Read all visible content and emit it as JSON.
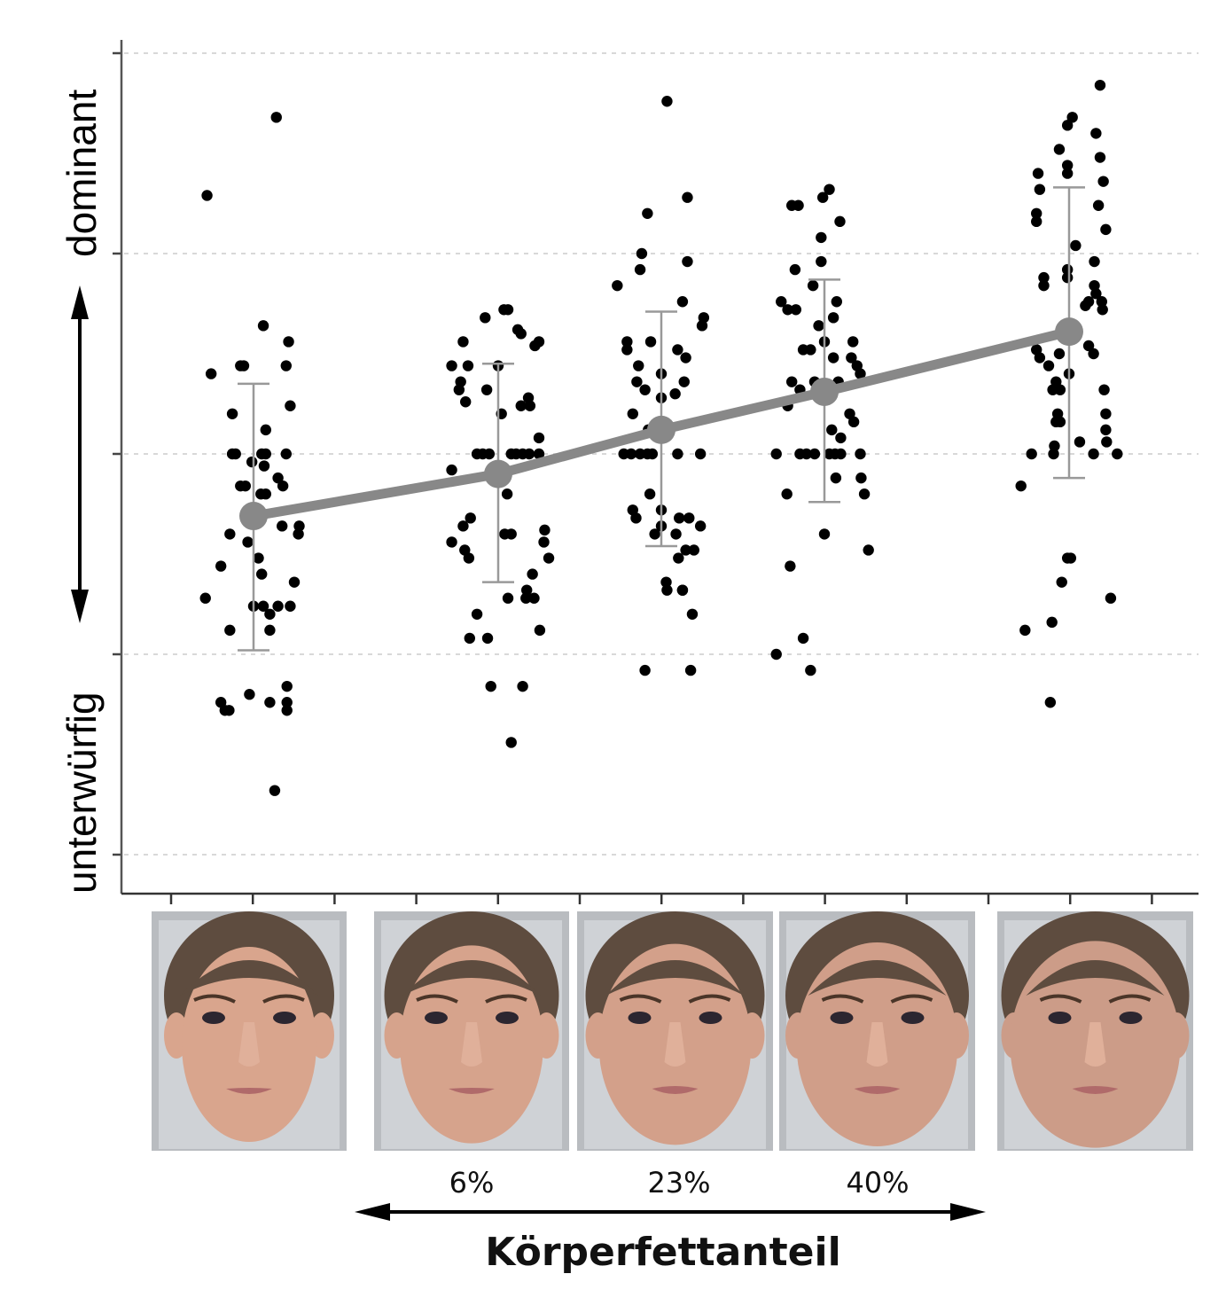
{
  "chart_data": {
    "type": "scatter",
    "title": "",
    "ylabel_top": "dominant",
    "ylabel_bottom": "unterwürfig",
    "xlabel": "Körperfettanteil",
    "x_tick_labels": [
      "6%",
      "23%",
      "40%"
    ],
    "ylim": [
      -2.2,
      2.1
    ],
    "y_gridlines": [
      2,
      1,
      0,
      -1,
      -2
    ],
    "grid": true,
    "x_minor_ticks": 13,
    "categories": [
      "face-1",
      "face-2",
      "face-3",
      "face-4",
      "face-5"
    ],
    "colors": {
      "points": "#000000",
      "mean": "#888888",
      "errorbar": "#999999",
      "grid": "#cccccc",
      "axis": "#444444"
    },
    "means": [
      -0.31,
      -0.1,
      0.12,
      0.31,
      0.61
    ],
    "error_bars": [
      {
        "low": -0.98,
        "high": 0.35
      },
      {
        "low": -0.64,
        "high": 0.45
      },
      {
        "low": -0.46,
        "high": 0.71
      },
      {
        "low": -0.24,
        "high": 0.87
      },
      {
        "low": -0.12,
        "high": 1.33
      }
    ],
    "series": [
      {
        "name": "face-1",
        "points": [
          [
            -0.57,
            1.29
          ],
          [
            0.28,
            1.68
          ],
          [
            0.12,
            0.64
          ],
          [
            -0.52,
            0.4
          ],
          [
            0.43,
            0.56
          ],
          [
            -0.16,
            0.44
          ],
          [
            -0.12,
            0.44
          ],
          [
            0.4,
            0.44
          ],
          [
            0.45,
            0.24
          ],
          [
            -0.26,
            0.2
          ],
          [
            0.15,
            0.12
          ],
          [
            -0.26,
            0.0
          ],
          [
            -0.22,
            0.0
          ],
          [
            0.1,
            0.0
          ],
          [
            0.15,
            0.0
          ],
          [
            0.4,
            0.0
          ],
          [
            -0.02,
            -0.04
          ],
          [
            0.13,
            -0.06
          ],
          [
            -0.16,
            -0.16
          ],
          [
            -0.1,
            -0.16
          ],
          [
            0.3,
            -0.12
          ],
          [
            0.36,
            -0.16
          ],
          [
            0.15,
            -0.2
          ],
          [
            0.09,
            -0.2
          ],
          [
            0.35,
            -0.36
          ],
          [
            0.56,
            -0.36
          ],
          [
            0.55,
            -0.4
          ],
          [
            -0.29,
            -0.4
          ],
          [
            -0.07,
            -0.44
          ],
          [
            0.06,
            -0.52
          ],
          [
            -0.4,
            -0.56
          ],
          [
            0.1,
            -0.6
          ],
          [
            0.5,
            -0.64
          ],
          [
            -0.59,
            -0.72
          ],
          [
            0.0,
            -0.76
          ],
          [
            0.12,
            -0.76
          ],
          [
            0.3,
            -0.76
          ],
          [
            0.45,
            -0.76
          ],
          [
            0.2,
            -0.8
          ],
          [
            0.2,
            -0.88
          ],
          [
            -0.29,
            -0.88
          ],
          [
            -0.4,
            -1.24
          ],
          [
            -0.35,
            -1.28
          ],
          [
            -0.3,
            -1.28
          ],
          [
            -0.05,
            -1.2
          ],
          [
            0.2,
            -1.24
          ],
          [
            0.41,
            -1.16
          ],
          [
            0.41,
            -1.24
          ],
          [
            0.41,
            -1.28
          ],
          [
            0.26,
            -1.68
          ]
        ]
      },
      {
        "name": "face-2",
        "points": [
          [
            0.07,
            0.72
          ],
          [
            0.12,
            0.72
          ],
          [
            -0.16,
            0.68
          ],
          [
            -0.43,
            0.56
          ],
          [
            0.28,
            0.6
          ],
          [
            0.24,
            0.62
          ],
          [
            0.5,
            0.56
          ],
          [
            0.45,
            0.54
          ],
          [
            0.0,
            0.44
          ],
          [
            -0.57,
            0.44
          ],
          [
            -0.37,
            0.44
          ],
          [
            -0.46,
            0.36
          ],
          [
            -0.48,
            0.32
          ],
          [
            -0.4,
            0.26
          ],
          [
            -0.14,
            0.32
          ],
          [
            0.37,
            0.28
          ],
          [
            0.28,
            0.24
          ],
          [
            0.39,
            0.24
          ],
          [
            0.04,
            0.2
          ],
          [
            0.5,
            0.08
          ],
          [
            -0.26,
            0.0
          ],
          [
            -0.19,
            0.0
          ],
          [
            -0.11,
            0.0
          ],
          [
            0.16,
            0.0
          ],
          [
            0.22,
            0.0
          ],
          [
            0.3,
            0.0
          ],
          [
            0.38,
            0.0
          ],
          [
            0.5,
            0.0
          ],
          [
            -0.57,
            -0.08
          ],
          [
            0.11,
            -0.2
          ],
          [
            -0.34,
            -0.32
          ],
          [
            -0.43,
            -0.36
          ],
          [
            -0.57,
            -0.44
          ],
          [
            0.16,
            -0.4
          ],
          [
            0.57,
            -0.38
          ],
          [
            0.56,
            -0.44
          ],
          [
            -0.41,
            -0.48
          ],
          [
            -0.36,
            -0.52
          ],
          [
            0.08,
            -0.4
          ],
          [
            0.42,
            -0.6
          ],
          [
            0.62,
            -0.52
          ],
          [
            0.35,
            -0.68
          ],
          [
            0.12,
            -0.72
          ],
          [
            0.34,
            -0.72
          ],
          [
            0.44,
            -0.72
          ],
          [
            -0.26,
            -0.8
          ],
          [
            0.51,
            -0.88
          ],
          [
            -0.35,
            -0.92
          ],
          [
            -0.13,
            -0.92
          ],
          [
            -0.09,
            -1.16
          ],
          [
            0.3,
            -1.16
          ],
          [
            0.16,
            -1.44
          ]
        ]
      },
      {
        "name": "face-3",
        "points": [
          [
            0.07,
            1.76
          ],
          [
            0.32,
            1.28
          ],
          [
            -0.17,
            1.2
          ],
          [
            -0.24,
            1.0
          ],
          [
            0.32,
            0.96
          ],
          [
            -0.26,
            0.92
          ],
          [
            -0.54,
            0.84
          ],
          [
            0.26,
            0.76
          ],
          [
            0.52,
            0.68
          ],
          [
            0.5,
            0.64
          ],
          [
            -0.42,
            0.56
          ],
          [
            -0.42,
            0.52
          ],
          [
            -0.13,
            0.56
          ],
          [
            0.2,
            0.52
          ],
          [
            0.3,
            0.48
          ],
          [
            -0.28,
            0.44
          ],
          [
            0.0,
            0.4
          ],
          [
            0.28,
            0.36
          ],
          [
            -0.3,
            0.36
          ],
          [
            -0.2,
            0.32
          ],
          [
            0.17,
            0.3
          ],
          [
            0.0,
            0.28
          ],
          [
            -0.35,
            0.2
          ],
          [
            -0.16,
            0.12
          ],
          [
            0.08,
            0.14
          ],
          [
            -0.46,
            0.0
          ],
          [
            -0.37,
            0.0
          ],
          [
            -0.26,
            0.0
          ],
          [
            -0.17,
            0.0
          ],
          [
            -0.11,
            0.0
          ],
          [
            0.2,
            0.0
          ],
          [
            0.48,
            0.0
          ],
          [
            -0.14,
            -0.2
          ],
          [
            0.48,
            -0.36
          ],
          [
            -0.35,
            -0.28
          ],
          [
            -0.31,
            -0.32
          ],
          [
            0.0,
            -0.28
          ],
          [
            0.22,
            -0.32
          ],
          [
            0.34,
            -0.32
          ],
          [
            0.0,
            -0.36
          ],
          [
            -0.08,
            -0.4
          ],
          [
            0.18,
            -0.4
          ],
          [
            0.4,
            -0.48
          ],
          [
            0.3,
            -0.48
          ],
          [
            0.21,
            -0.52
          ],
          [
            0.06,
            -0.64
          ],
          [
            0.26,
            -0.68
          ],
          [
            0.07,
            -0.68
          ],
          [
            0.38,
            -0.8
          ],
          [
            0.26,
            -0.68
          ],
          [
            -0.2,
            -1.08
          ],
          [
            0.36,
            -1.08
          ]
        ]
      },
      {
        "name": "face-4",
        "points": [
          [
            0.06,
            1.32
          ],
          [
            -0.02,
            1.28
          ],
          [
            -0.4,
            1.24
          ],
          [
            -0.32,
            1.24
          ],
          [
            0.19,
            1.16
          ],
          [
            -0.04,
            1.08
          ],
          [
            -0.04,
            0.96
          ],
          [
            -0.36,
            0.92
          ],
          [
            -0.14,
            0.84
          ],
          [
            -0.53,
            0.76
          ],
          [
            -0.45,
            0.72
          ],
          [
            -0.35,
            0.72
          ],
          [
            0.15,
            0.76
          ],
          [
            0.11,
            0.68
          ],
          [
            -0.07,
            0.64
          ],
          [
            0.0,
            0.56
          ],
          [
            0.35,
            0.56
          ],
          [
            -0.17,
            0.52
          ],
          [
            -0.26,
            0.52
          ],
          [
            0.11,
            0.48
          ],
          [
            0.33,
            0.48
          ],
          [
            0.4,
            0.44
          ],
          [
            0.44,
            0.4
          ],
          [
            -0.4,
            0.36
          ],
          [
            -0.3,
            0.32
          ],
          [
            -0.12,
            0.36
          ],
          [
            0.17,
            0.36
          ],
          [
            -0.45,
            0.24
          ],
          [
            0.31,
            0.2
          ],
          [
            0.36,
            0.16
          ],
          [
            0.09,
            0.12
          ],
          [
            0.2,
            0.08
          ],
          [
            -0.59,
            0.0
          ],
          [
            -0.3,
            0.0
          ],
          [
            -0.22,
            0.0
          ],
          [
            -0.12,
            0.0
          ],
          [
            0.06,
            0.0
          ],
          [
            0.13,
            0.0
          ],
          [
            0.2,
            0.0
          ],
          [
            0.44,
            0.0
          ],
          [
            0.14,
            -0.12
          ],
          [
            0.45,
            -0.12
          ],
          [
            -0.46,
            -0.2
          ],
          [
            0.49,
            -0.2
          ],
          [
            0.0,
            -0.4
          ],
          [
            0.54,
            -0.48
          ],
          [
            -0.42,
            -0.56
          ],
          [
            -0.26,
            -0.92
          ],
          [
            -0.59,
            -1.0
          ],
          [
            -0.17,
            -1.08
          ]
        ]
      },
      {
        "name": "face-5",
        "points": [
          [
            0.38,
            1.84
          ],
          [
            0.04,
            1.68
          ],
          [
            -0.02,
            1.64
          ],
          [
            0.33,
            1.6
          ],
          [
            -0.12,
            1.52
          ],
          [
            0.38,
            1.48
          ],
          [
            -0.38,
            1.4
          ],
          [
            -0.02,
            1.44
          ],
          [
            -0.02,
            1.4
          ],
          [
            -0.36,
            1.32
          ],
          [
            0.42,
            1.36
          ],
          [
            0.36,
            1.24
          ],
          [
            -0.4,
            1.2
          ],
          [
            -0.4,
            1.16
          ],
          [
            0.45,
            1.12
          ],
          [
            0.08,
            1.04
          ],
          [
            0.31,
            0.96
          ],
          [
            -0.31,
            0.88
          ],
          [
            -0.31,
            0.84
          ],
          [
            -0.02,
            0.92
          ],
          [
            -0.02,
            0.88
          ],
          [
            0.31,
            0.84
          ],
          [
            0.33,
            0.8
          ],
          [
            0.24,
            0.76
          ],
          [
            0.4,
            0.76
          ],
          [
            0.2,
            0.74
          ],
          [
            -0.04,
            0.6
          ],
          [
            0.24,
            0.54
          ],
          [
            0.41,
            0.72
          ],
          [
            -0.4,
            0.52
          ],
          [
            -0.36,
            0.48
          ],
          [
            -0.12,
            0.5
          ],
          [
            0.3,
            0.5
          ],
          [
            -0.25,
            0.44
          ],
          [
            0.0,
            0.4
          ],
          [
            -0.16,
            0.36
          ],
          [
            -0.11,
            0.32
          ],
          [
            -0.2,
            0.32
          ],
          [
            0.43,
            0.32
          ],
          [
            -0.14,
            0.2
          ],
          [
            -0.11,
            0.16
          ],
          [
            -0.16,
            0.16
          ],
          [
            0.45,
            0.2
          ],
          [
            0.45,
            0.12
          ],
          [
            0.13,
            0.06
          ],
          [
            0.46,
            0.06
          ],
          [
            -0.46,
            0.0
          ],
          [
            -0.18,
            0.04
          ],
          [
            -0.19,
            0.0
          ],
          [
            0.3,
            0.0
          ],
          [
            0.59,
            0.0
          ],
          [
            -0.59,
            -0.16
          ],
          [
            -0.02,
            -0.52
          ],
          [
            0.02,
            -0.52
          ],
          [
            -0.09,
            -0.64
          ],
          [
            0.51,
            -0.72
          ],
          [
            -0.54,
            -0.88
          ],
          [
            -0.21,
            -0.84
          ],
          [
            -0.23,
            -1.24
          ]
        ]
      }
    ]
  },
  "faces": [
    {
      "label": "face-1",
      "skin": "#d9a58d"
    },
    {
      "label": "face-2",
      "skin": "#d6a38c"
    },
    {
      "label": "face-3",
      "skin": "#d3a08a"
    },
    {
      "label": "face-4",
      "skin": "#d09e89"
    },
    {
      "label": "face-5",
      "skin": "#cc9c88"
    }
  ]
}
